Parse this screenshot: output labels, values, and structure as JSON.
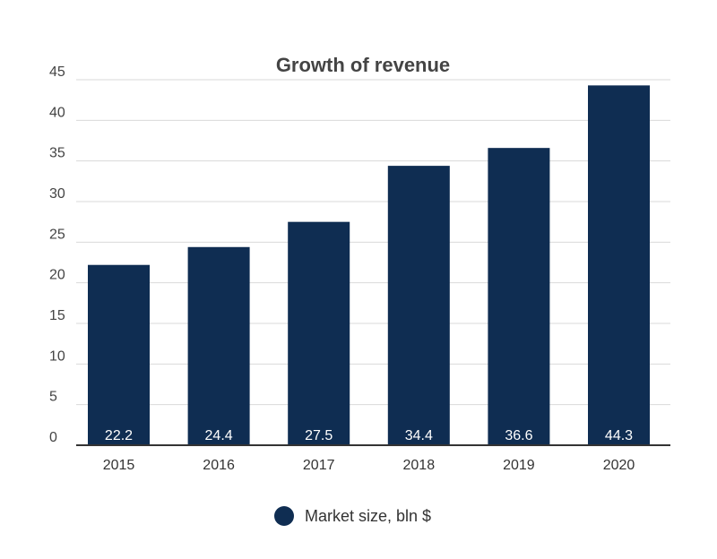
{
  "chart_data": {
    "type": "bar",
    "title": "Growth of revenue",
    "categories": [
      "2015",
      "2016",
      "2017",
      "2018",
      "2019",
      "2020"
    ],
    "series": [
      {
        "name": "Market size, bln $",
        "values": [
          22.2,
          24.4,
          27.5,
          34.4,
          36.6,
          44.3
        ]
      }
    ],
    "data_labels": [
      "22.2",
      "24.4",
      "27.5",
      "34.4",
      "36.6",
      "44.3"
    ],
    "ylim": [
      0,
      45
    ],
    "yticks": [
      0,
      5,
      10,
      15,
      20,
      25,
      30,
      35,
      40,
      45
    ],
    "xlabel": "",
    "ylabel": "",
    "grid": true,
    "legend_position": "bottom-center",
    "colors": {
      "bar": "#0f2d52"
    }
  }
}
